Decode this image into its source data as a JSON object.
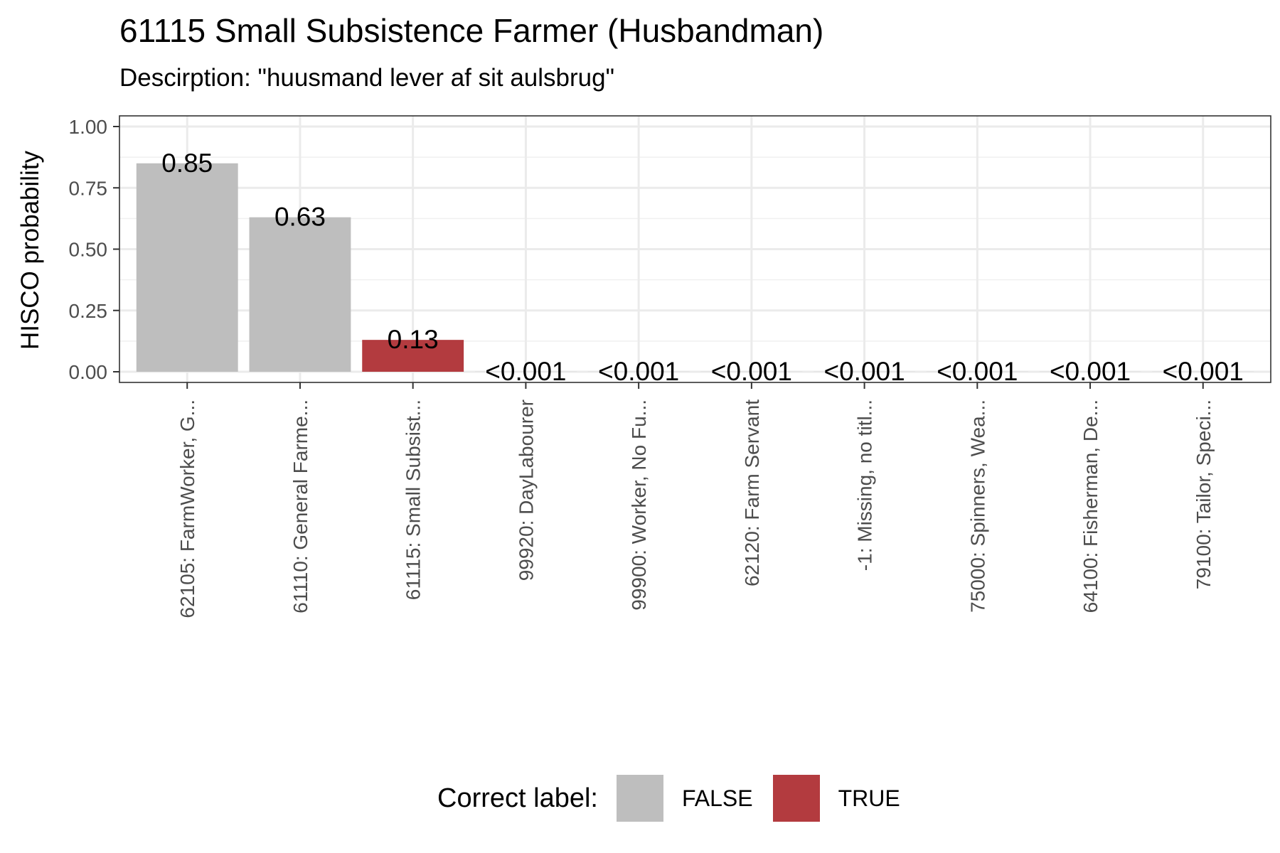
{
  "chart_data": {
    "type": "bar",
    "title": "61115 Small Subsistence Farmer (Husbandman)",
    "subtitle": "Descirption: \"huusmand lever af sit aulsbrug\"",
    "xlabel": "",
    "ylabel": "HISCO probability",
    "ylim": [
      0,
      1
    ],
    "yticks": [
      0.0,
      0.25,
      0.5,
      0.75,
      1.0
    ],
    "ytick_labels": [
      "0.00",
      "0.25",
      "0.50",
      "0.75",
      "1.00"
    ],
    "grid": true,
    "categories": [
      "62105: FarmWorker, G...",
      "61110: General Farme...",
      "61115: Small Subsist...",
      "99920: DayLabourer",
      "99900: Worker, No Fu...",
      "62120: Farm Servant",
      "-1: Missing, no titl...",
      "75000: Spinners, Wea...",
      "64100: Fisherman, De...",
      "79100: Tailor, Speci..."
    ],
    "values": [
      0.85,
      0.63,
      0.13,
      0.0005,
      0.0005,
      0.0005,
      0.0005,
      0.0005,
      0.0005,
      0.0005
    ],
    "data_labels": [
      "0.85",
      "0.63",
      "0.13",
      "<0.001",
      "<0.001",
      "<0.001",
      "<0.001",
      "<0.001",
      "<0.001",
      "<0.001"
    ],
    "correct": [
      false,
      false,
      true,
      false,
      false,
      false,
      false,
      false,
      false,
      false
    ],
    "legend": {
      "title": "Correct label:",
      "position": "bottom",
      "entries": [
        {
          "label": "FALSE",
          "color": "#bebebe"
        },
        {
          "label": "TRUE",
          "color": "#b33b3f"
        }
      ]
    },
    "colors": {
      "false": "#bebebe",
      "true": "#b33b3f"
    }
  }
}
